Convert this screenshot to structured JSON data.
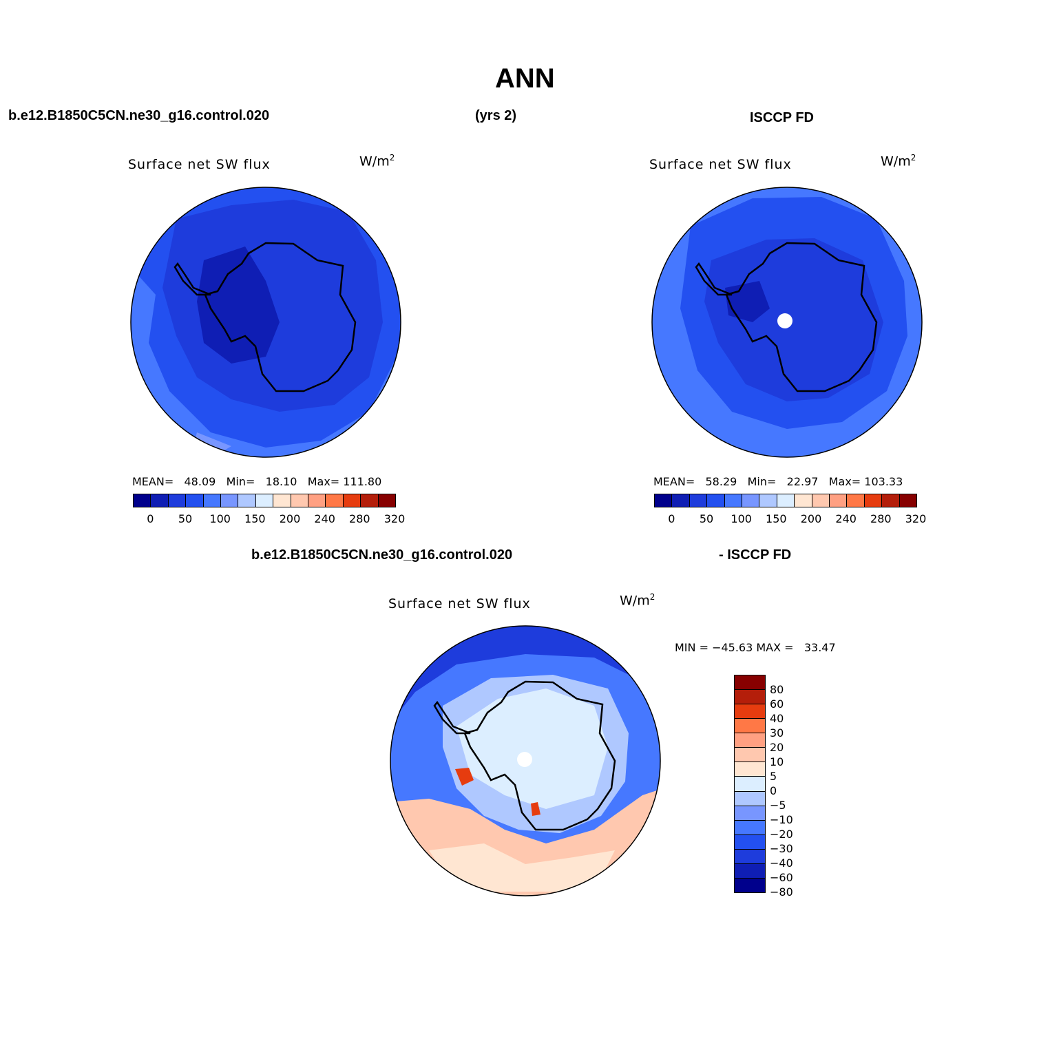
{
  "figure": {
    "title": "ANN",
    "case_name": "b.e12.B1850C5CN.ne30_g16.control.020",
    "years": "(yrs 2)",
    "obs_name": "ISCCP FD",
    "diff_case": "b.e12.B1850C5CN.ne30_g16.control.020",
    "diff_obs": "- ISCCP FD"
  },
  "panels": {
    "model": {
      "title": "Surface net SW flux",
      "units_base": "W/m",
      "units_exp": "2",
      "mean_label": "MEAN=",
      "mean": "48.09",
      "min_label": "Min=",
      "min": "18.10",
      "max_label": "Max=",
      "max": "111.80"
    },
    "obs": {
      "title": "Surface net SW flux",
      "units_base": "W/m",
      "units_exp": "2",
      "mean_label": "MEAN=",
      "mean": "58.29",
      "min_label": "Min=",
      "min": "22.97",
      "max_label": "Max=",
      "max": "103.33"
    },
    "diff": {
      "title": "Surface net SW flux",
      "units_base": "W/m",
      "units_exp": "2",
      "minmax": "MIN = −45.63 MAX =   33.47"
    }
  },
  "colorbar_abs": {
    "colors": [
      "#00008c",
      "#0f1eb4",
      "#1e3cdc",
      "#2350f0",
      "#4678ff",
      "#7896ff",
      "#afc8ff",
      "#dceeff",
      "#ffe6d2",
      "#ffc8af",
      "#ffa082",
      "#ff7846",
      "#e63c0f",
      "#b41e0a",
      "#870000"
    ],
    "ticks": [
      "0",
      "50",
      "100",
      "150",
      "200",
      "240",
      "280",
      "320"
    ]
  },
  "colorbar_diff": {
    "colors": [
      "#870000",
      "#b41e0a",
      "#e63c0f",
      "#ff7846",
      "#ffa082",
      "#ffc8af",
      "#ffe6d2",
      "#dceeff",
      "#afc8ff",
      "#7896ff",
      "#4678ff",
      "#2350f0",
      "#1e3cdc",
      "#0f1eb4",
      "#00008c"
    ],
    "ticks": [
      "80",
      "60",
      "40",
      "30",
      "20",
      "10",
      "5",
      "0",
      "−5",
      "−10",
      "−20",
      "−30",
      "−40",
      "−60",
      "−80"
    ]
  },
  "map_colors": {
    "outer": "#2350f0",
    "inner": "#1e3cdc",
    "deep": "#0f1eb4",
    "light": "#4678ff",
    "pale": "#7896ff",
    "diff_ocean_outer": "#1e3cdc",
    "diff_ocean": "#4678ff",
    "diff_pale": "#afc8ff",
    "diff_ice": "#dceeff",
    "diff_warm": "#ffc8af",
    "diff_warmer": "#ffe6d2",
    "diff_hot": "#e63c0f",
    "coast": "#000000",
    "pole": "#ffffff"
  }
}
